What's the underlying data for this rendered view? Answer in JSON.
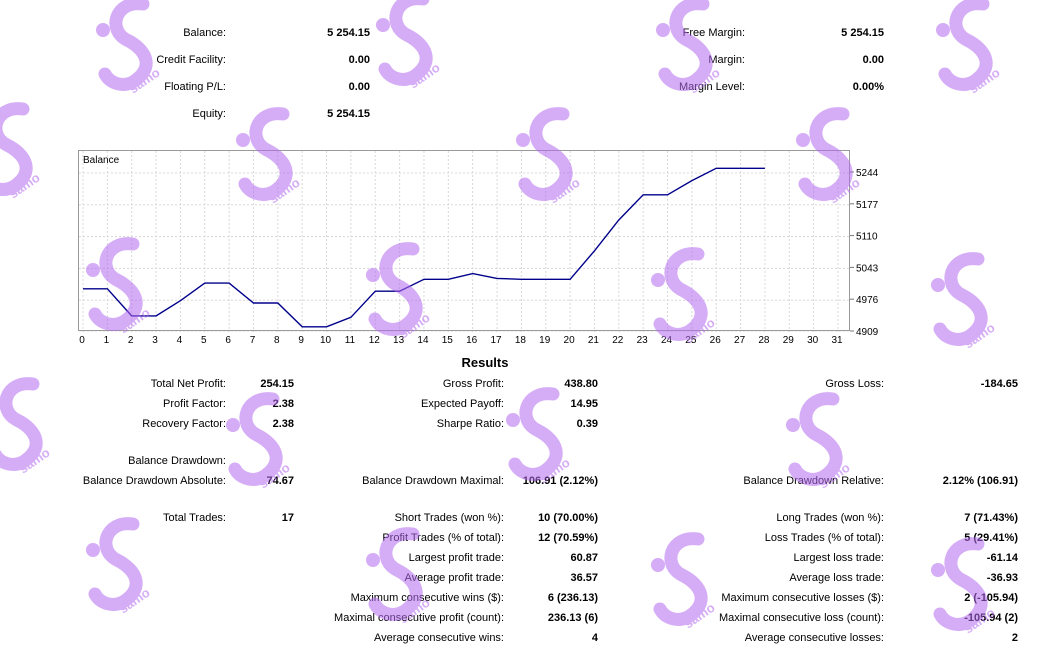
{
  "summary": {
    "balance_label": "Balance:",
    "balance": "5 254.15",
    "credit_label": "Credit Facility:",
    "credit": "0.00",
    "floating_label": "Floating P/L:",
    "floating": "0.00",
    "equity_label": "Equity:",
    "equity": "5 254.15",
    "free_margin_label": "Free Margin:",
    "free_margin": "5 254.15",
    "margin_label": "Margin:",
    "margin": "0.00",
    "margin_level_label": "Margin Level:",
    "margin_level": "0.00%"
  },
  "chart_data": {
    "type": "line",
    "title": "Balance",
    "x": [
      0,
      1,
      2,
      3,
      4,
      5,
      6,
      7,
      8,
      9,
      10,
      11,
      12,
      13,
      14,
      15,
      16,
      17,
      18,
      19,
      20,
      21,
      22,
      23,
      24,
      25,
      26,
      27,
      28
    ],
    "series": [
      {
        "values": [
          5000,
          5000,
          4943,
          4943,
          4975,
          5012,
          5012,
          4970,
          4970,
          4920,
          4920,
          4940,
          4995,
          4995,
          5020,
          5020,
          5032,
          5022,
          5020,
          5020,
          5020,
          5080,
          5145,
          5198,
          5198,
          5228,
          5254,
          5254,
          5254
        ]
      }
    ],
    "xticks": [
      "0",
      "1",
      "2",
      "3",
      "4",
      "5",
      "6",
      "7",
      "8",
      "9",
      "10",
      "11",
      "12",
      "13",
      "14",
      "15",
      "16",
      "17",
      "18",
      "19",
      "20",
      "21",
      "22",
      "23",
      "24",
      "25",
      "26",
      "27",
      "28",
      "29",
      "30",
      "31"
    ],
    "yticks": [
      "5244",
      "5177",
      "5110",
      "5043",
      "4976",
      "4909"
    ],
    "ylim": [
      4909,
      5244
    ],
    "xlim": [
      0,
      31
    ],
    "grid": true,
    "line_color": "#00008b"
  },
  "results": {
    "title": "Results",
    "total_net_profit_label": "Total Net Profit:",
    "total_net_profit": "254.15",
    "gross_profit_label": "Gross Profit:",
    "gross_profit": "438.80",
    "gross_loss_label": "Gross Loss:",
    "gross_loss": "-184.65",
    "profit_factor_label": "Profit Factor:",
    "profit_factor": "2.38",
    "expected_payoff_label": "Expected Payoff:",
    "expected_payoff": "14.95",
    "recovery_factor_label": "Recovery Factor:",
    "recovery_factor": "2.38",
    "sharpe_ratio_label": "Sharpe Ratio:",
    "sharpe_ratio": "0.39",
    "balance_drawdown_label": "Balance Drawdown:",
    "bd_absolute_label": "Balance Drawdown Absolute:",
    "bd_absolute": "74.67",
    "bd_maximal_label": "Balance Drawdown Maximal:",
    "bd_maximal": "106.91 (2.12%)",
    "bd_relative_label": "Balance Drawdown Relative:",
    "bd_relative": "2.12% (106.91)",
    "total_trades_label": "Total Trades:",
    "total_trades": "17",
    "short_trades_label": "Short Trades (won %):",
    "short_trades": "10 (70.00%)",
    "long_trades_label": "Long Trades (won %):",
    "long_trades": "7 (71.43%)",
    "profit_trades_label": "Profit Trades (% of total):",
    "profit_trades": "12 (70.59%)",
    "loss_trades_label": "Loss Trades (% of total):",
    "loss_trades": "5 (29.41%)",
    "largest_profit_label": "Largest profit trade:",
    "largest_profit": "60.87",
    "largest_loss_label": "Largest loss trade:",
    "largest_loss": "-61.14",
    "avg_profit_label": "Average profit trade:",
    "avg_profit": "36.57",
    "avg_loss_label": "Average loss trade:",
    "avg_loss": "-36.93",
    "max_consec_wins_label": "Maximum consecutive wins ($):",
    "max_consec_wins": "6 (236.13)",
    "max_consec_losses_label": "Maximum consecutive losses ($):",
    "max_consec_losses": "2 (-105.94)",
    "maximal_consec_profit_label": "Maximal consecutive profit (count):",
    "maximal_consec_profit": "236.13 (6)",
    "maximal_consec_loss_label": "Maximal consecutive loss (count):",
    "maximal_consec_loss": "-105.94 (2)",
    "avg_consec_wins_label": "Average consecutive wins:",
    "avg_consec_wins": "4",
    "avg_consec_losses_label": "Average consecutive losses:",
    "avg_consec_losses": "2"
  },
  "watermark": {
    "text": "samo",
    "color": "#b469f0",
    "icon": "samo-logo"
  }
}
